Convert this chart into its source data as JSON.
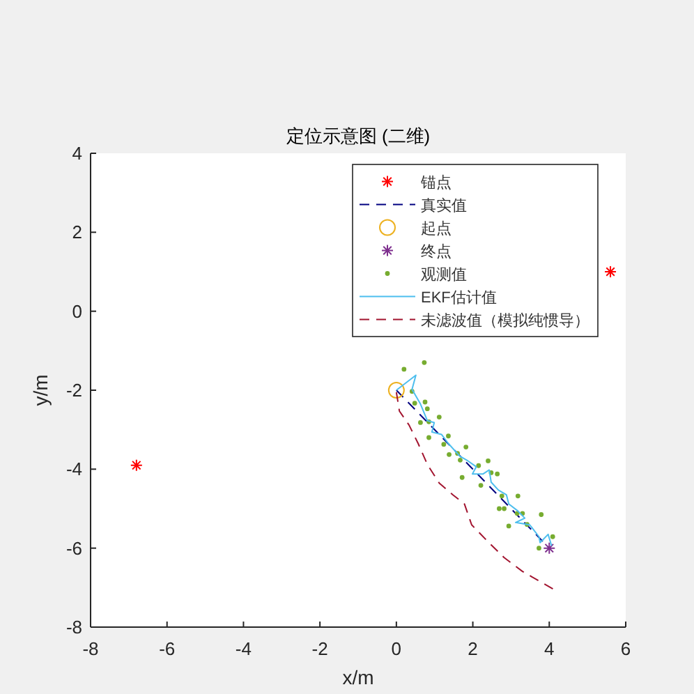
{
  "chart_data": {
    "type": "line",
    "title": "定位示意图 (二维)",
    "xlabel": "x/m",
    "ylabel": "y/m",
    "xlim": [
      -8,
      6
    ],
    "ylim": [
      -8,
      4
    ],
    "xticks": [
      -8,
      -6,
      -4,
      -2,
      0,
      2,
      4,
      6
    ],
    "yticks": [
      -8,
      -6,
      -4,
      -2,
      0,
      2,
      4
    ],
    "legend": "top right",
    "series": [
      {
        "name": "锚点",
        "type": "scatter",
        "marker": "cross",
        "color": "#ff0000",
        "x": [
          -6.8,
          5.6
        ],
        "values": [
          -3.9,
          1.0
        ]
      },
      {
        "name": "真实值",
        "type": "line",
        "line_style": "dashed",
        "color": "#000080",
        "x": [
          0,
          4
        ],
        "values": [
          -2,
          -6
        ]
      },
      {
        "name": "起点",
        "type": "scatter",
        "marker": "circle",
        "color": "#edb120",
        "x": [
          0
        ],
        "values": [
          -2
        ]
      },
      {
        "name": "终点",
        "type": "scatter",
        "marker": "cross",
        "color": "#7e2f8e",
        "x": [
          4
        ],
        "values": [
          -6
        ]
      },
      {
        "name": "观测值",
        "type": "scatter",
        "marker": "point",
        "color": "#77ac30",
        "x": [
          0.2,
          0.73,
          0.41,
          0.48,
          0.75,
          0.81,
          0.63,
          0.85,
          1.12,
          0.85,
          1.36,
          1.24,
          1.82,
          1.38,
          1.6,
          1.67,
          2.15,
          2.4,
          1.72,
          2.48,
          2.64,
          2.21,
          2.76,
          3.18,
          2.69,
          2.82,
          3.16,
          3.3,
          3.79,
          2.94,
          3.42,
          4.09,
          3.73
        ],
        "values": [
          -1.47,
          -1.3,
          -2.03,
          -2.33,
          -2.3,
          -2.47,
          -2.82,
          -2.8,
          -2.68,
          -3.2,
          -3.16,
          -3.37,
          -3.44,
          -3.63,
          -3.6,
          -3.77,
          -3.91,
          -3.79,
          -4.21,
          -4.09,
          -4.12,
          -4.41,
          -4.68,
          -4.68,
          -5.0,
          -5.0,
          -5.12,
          -5.12,
          -5.15,
          -5.44,
          -5.4,
          -5.71,
          -6.0
        ]
      },
      {
        "name": "EKF估计值",
        "type": "line",
        "line_style": "solid",
        "color": "#4dbeee",
        "x": [
          0,
          0.51,
          0.41,
          0.63,
          0.81,
          0.99,
          0.93,
          1.18,
          1.36,
          1.66,
          1.84,
          2.09,
          1.99,
          2.27,
          2.43,
          2.48,
          2.67,
          2.88,
          2.94,
          3.18,
          3.36,
          3.12,
          3.49,
          3.73,
          3.76,
          3.97,
          4.06
        ],
        "values": [
          -2.0,
          -1.62,
          -1.98,
          -2.35,
          -2.77,
          -2.82,
          -3.06,
          -3.12,
          -3.35,
          -3.67,
          -3.77,
          -3.94,
          -4.12,
          -4.12,
          -4.02,
          -4.33,
          -4.53,
          -4.65,
          -4.88,
          -5.06,
          -5.24,
          -5.35,
          -5.41,
          -5.71,
          -5.86,
          -5.65,
          -5.94
        ]
      },
      {
        "name": "未滤波值（模拟纯惯导）",
        "type": "line",
        "line_style": "dashed",
        "color": "#a2142f",
        "x": [
          0,
          0.08,
          0.33,
          0.57,
          0.81,
          1.12,
          1.48,
          1.78,
          1.97,
          2.39,
          2.82,
          3.3,
          3.73,
          4.15
        ],
        "values": [
          -2.05,
          -2.53,
          -2.88,
          -3.35,
          -3.88,
          -4.35,
          -4.65,
          -4.88,
          -5.41,
          -5.83,
          -6.24,
          -6.59,
          -6.83,
          -7.06
        ]
      }
    ]
  }
}
